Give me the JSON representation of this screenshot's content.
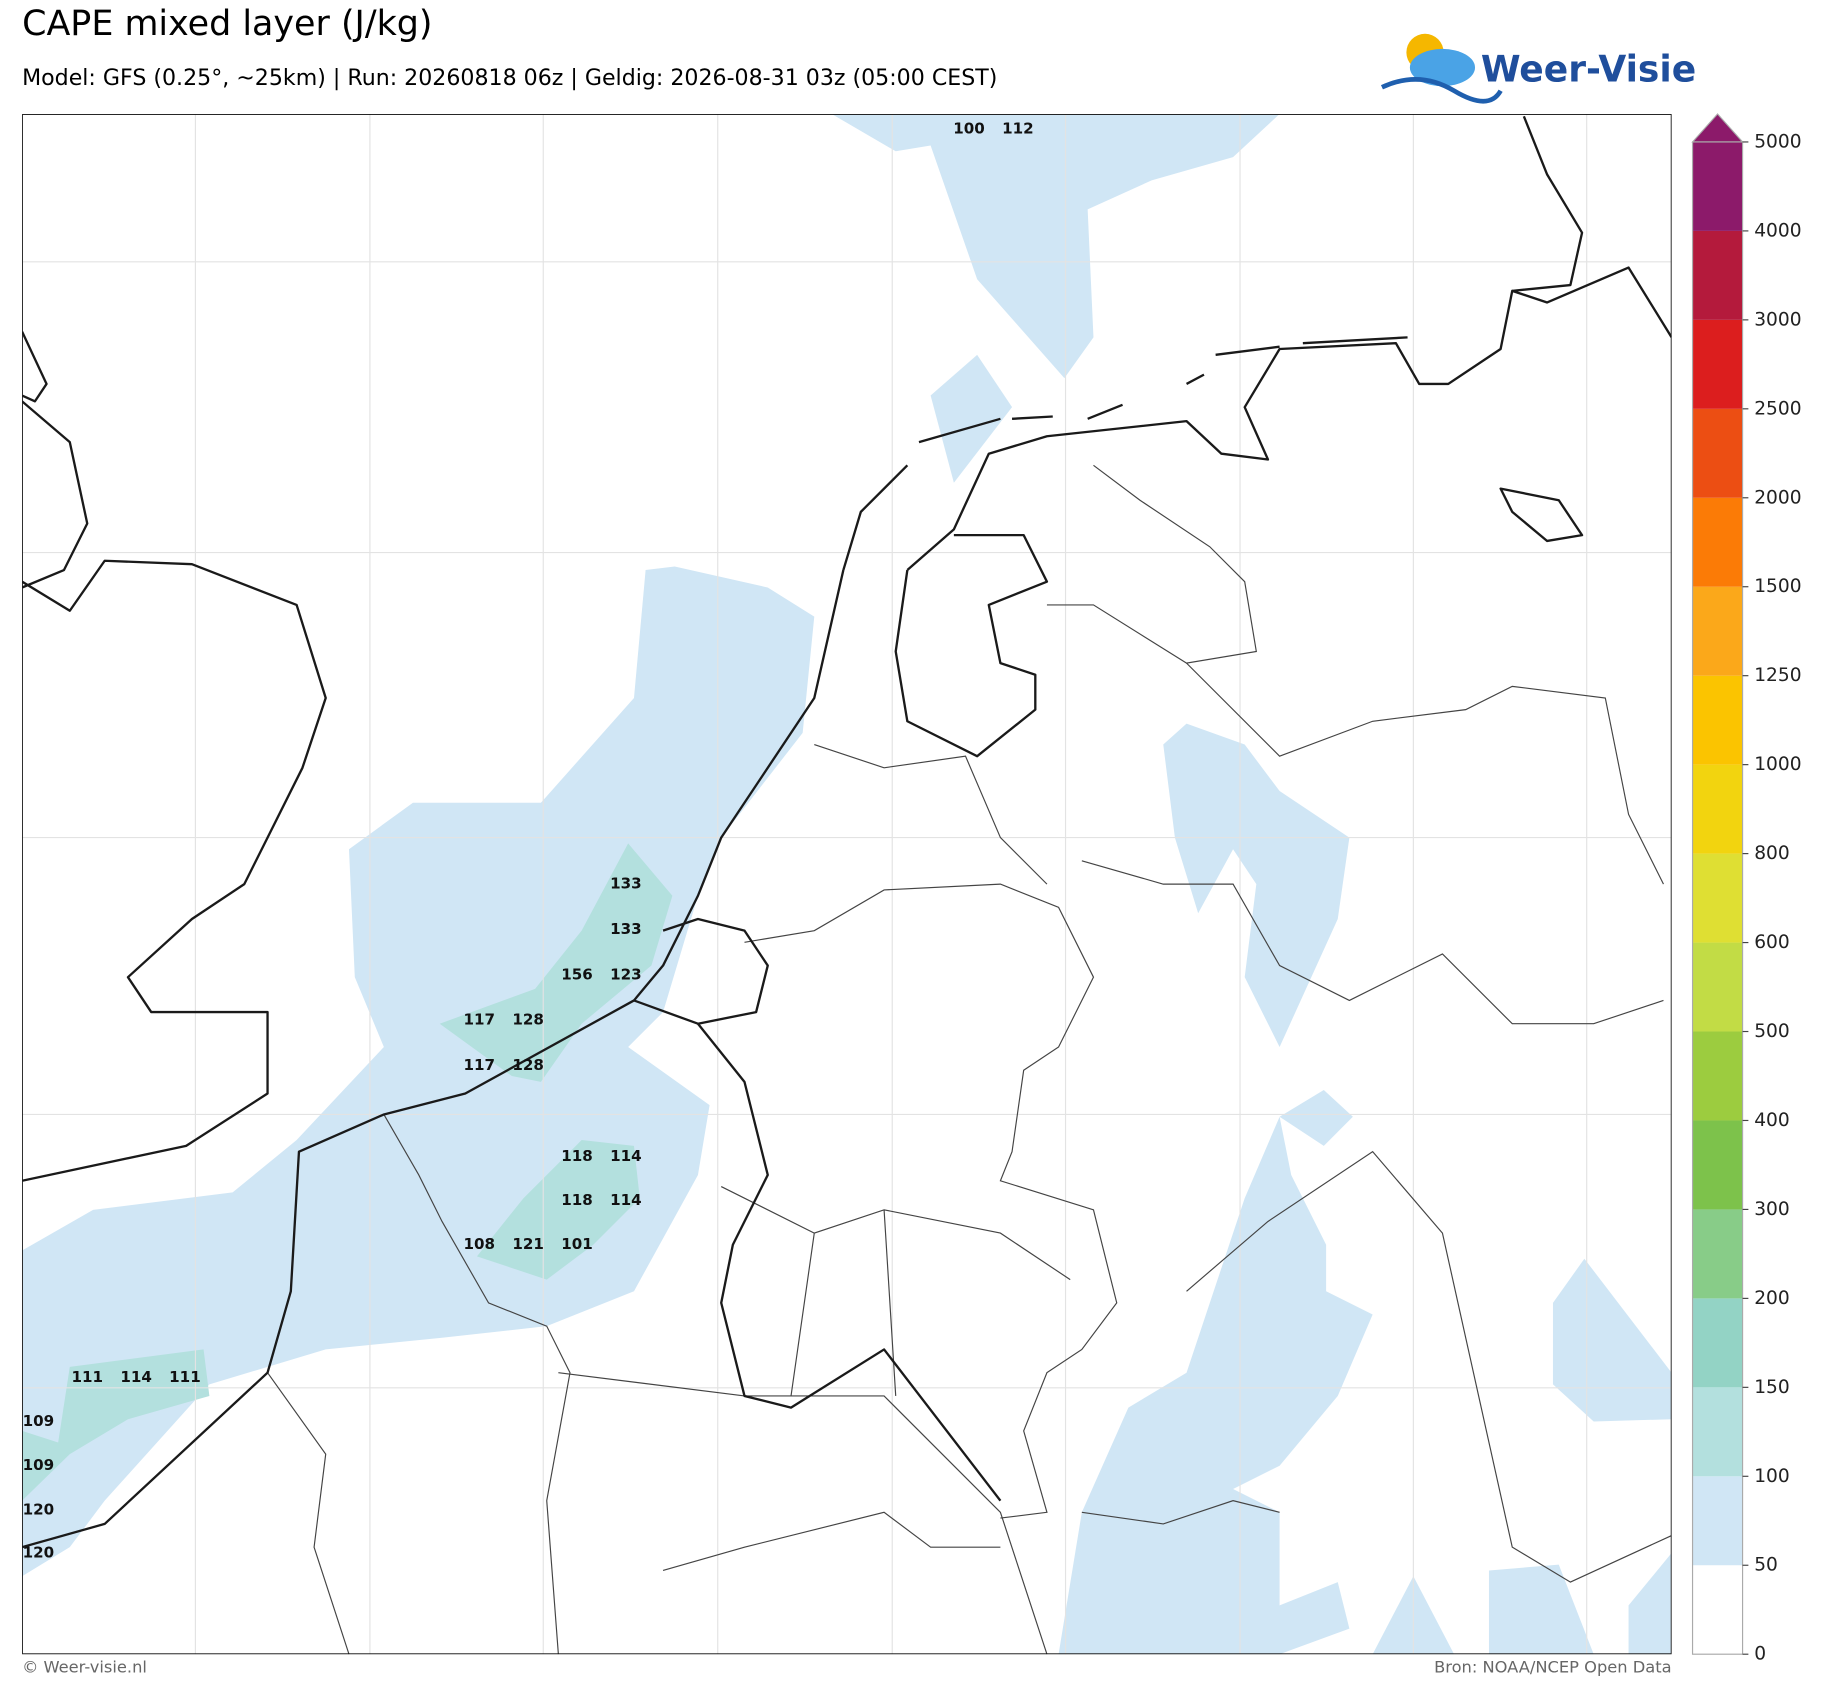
{
  "header": {
    "title": "CAPE mixed layer (J/kg)",
    "subtitle": "Model: GFS (0.25°, ~25km)  |  Run: 20260818 06z  |  Geldig: 2026-08-31 03z (05:00 CEST)",
    "logo": "Weer-Visie"
  },
  "map": {
    "labels": [
      100,
      112,
      133,
      133,
      156,
      123,
      117,
      128,
      117,
      128,
      118,
      114,
      118,
      114,
      108,
      121,
      101,
      111,
      114,
      111,
      109,
      109,
      120,
      120
    ]
  },
  "colorbar": {
    "ticks": [
      0,
      50,
      100,
      150,
      200,
      300,
      400,
      500,
      600,
      800,
      1000,
      1250,
      1500,
      2000,
      2500,
      3000,
      4000,
      5000
    ],
    "colors": [
      "#ffffff",
      "#d0e6f5",
      "#b3e0de",
      "#93d3c5",
      "#88cc88",
      "#7dc24b",
      "#9ccc3f",
      "#c2dc45",
      "#dfdf33",
      "#f2d40f",
      "#fbc400",
      "#fba81a",
      "#fb7b06",
      "#ec4e13",
      "#dc1e1e",
      "#b41a3c",
      "#8c1a6a"
    ]
  },
  "footer": {
    "left": "© Weer-visie.nl",
    "right": "Bron: NOAA/NCEP Open Data"
  }
}
